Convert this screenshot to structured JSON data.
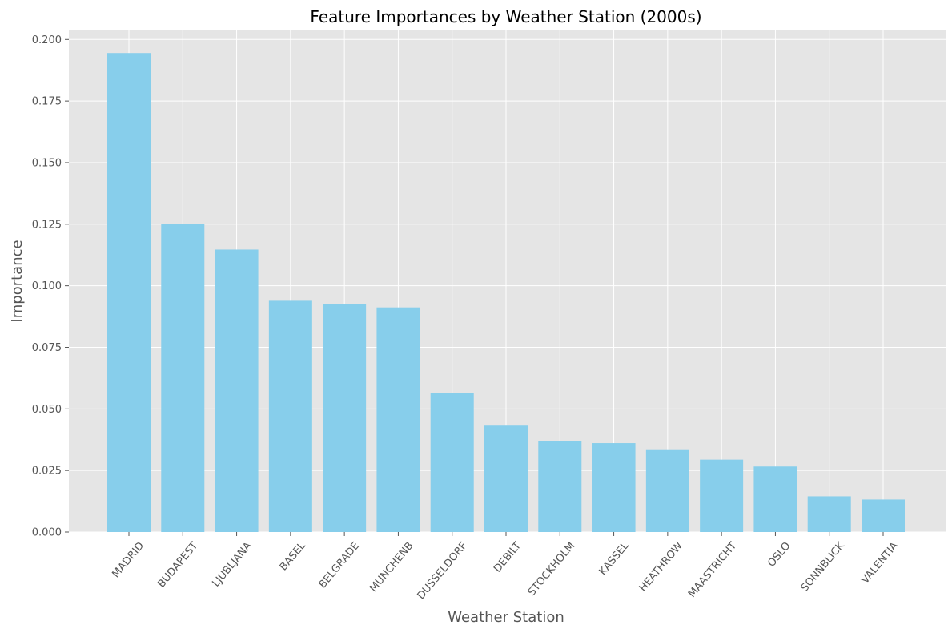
{
  "chart_data": {
    "type": "bar",
    "title": "Feature Importances by Weather Station (2000s)",
    "xlabel": "Weather Station",
    "ylabel": "Importance",
    "categories": [
      "MADRID",
      "BUDAPEST",
      "LJUBLJANA",
      "BASEL",
      "BELGRADE",
      "MUNCHENB",
      "DUSSELDORF",
      "DEBILT",
      "STOCKHOLM",
      "KASSEL",
      "HEATHROW",
      "MAASTRICHT",
      "OSLO",
      "SONNBLICK",
      "VALENTIA"
    ],
    "values": [
      0.1945,
      0.125,
      0.1147,
      0.0939,
      0.0926,
      0.0912,
      0.0564,
      0.0432,
      0.0368,
      0.0361,
      0.0336,
      0.0294,
      0.0266,
      0.0145,
      0.0132
    ],
    "ylim": [
      0,
      0.204
    ],
    "yticks": [
      "0.000",
      "0.025",
      "0.050",
      "0.075",
      "0.100",
      "0.125",
      "0.150",
      "0.175",
      "0.200"
    ],
    "grid": true,
    "bar_color": "#87CEEB",
    "background_color": "#E5E5E5",
    "grid_color": "#FFFFFF"
  }
}
